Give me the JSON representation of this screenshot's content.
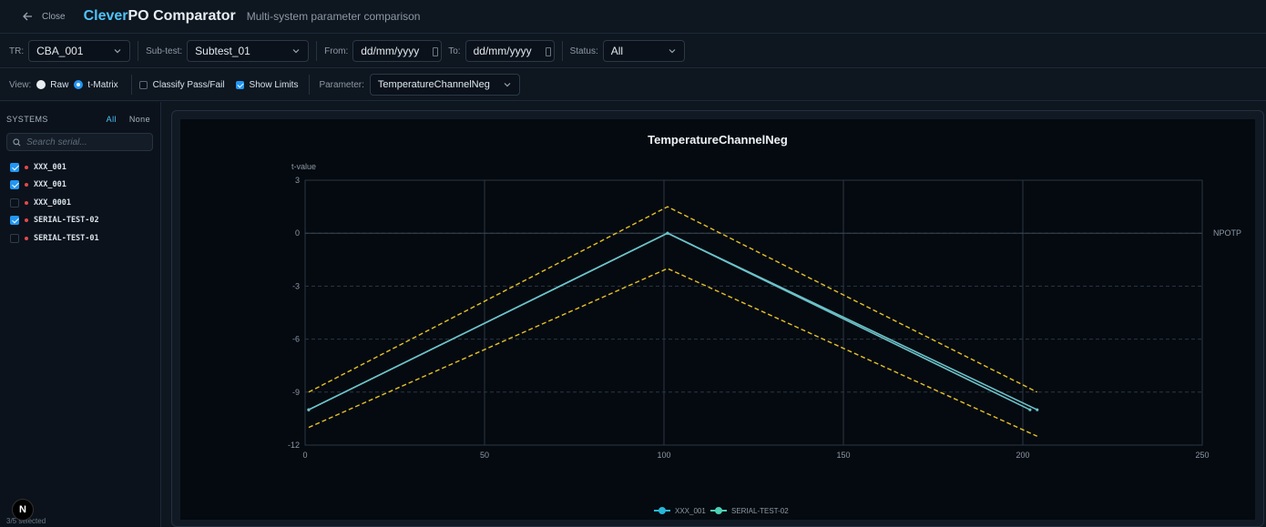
{
  "header": {
    "close_label": "Close",
    "brand_accent": "Clever",
    "brand_rest": "PO Comparator",
    "subtitle": "Multi-system parameter comparison"
  },
  "filters": {
    "tr_label": "TR:",
    "tr_value": "CBA_001",
    "subtest_label": "Sub-test:",
    "subtest_value": "Subtest_01",
    "from_label": "From:",
    "from_placeholder": "dd/mm/yyyy",
    "to_label": "To:",
    "to_placeholder": "dd/mm/yyyy",
    "status_label": "Status:",
    "status_value": "All"
  },
  "view": {
    "view_label": "View:",
    "raw_label": "Raw",
    "tmatrix_label": "t-Matrix",
    "selected": "t-Matrix",
    "classify_label": "Classify Pass/Fail",
    "classify_checked": false,
    "limits_label": "Show Limits",
    "limits_checked": true,
    "parameter_label": "Parameter:",
    "parameter_value": "TemperatureChannelNeg"
  },
  "sidebar": {
    "title": "SYSTEMS",
    "all_label": "All",
    "none_label": "None",
    "search_placeholder": "Search serial...",
    "systems": [
      {
        "label": "XXX_001",
        "checked": true
      },
      {
        "label": "XXX_001",
        "checked": true
      },
      {
        "label": "XXX_0001",
        "checked": false
      },
      {
        "label": "SERIAL-TEST-02",
        "checked": true
      },
      {
        "label": "SERIAL-TEST-01",
        "checked": false
      }
    ],
    "selected_count": "3/5 selected",
    "badge": "N"
  },
  "colors": {
    "accent": "#4fc3f7",
    "series_line": "#6cc3c9",
    "limit_line": "#e6c229",
    "status_dot": "#e5484d"
  },
  "chart_data": {
    "type": "line",
    "title": "TemperatureChannelNeg",
    "ylabel": "t-value",
    "xlabel": "",
    "xlim": [
      0,
      250
    ],
    "ylim": [
      -12,
      3
    ],
    "xticks": [
      0,
      50,
      100,
      150,
      200,
      250
    ],
    "yticks": [
      3,
      0,
      -3,
      -6,
      -9,
      -12
    ],
    "reference_line": {
      "y": 0,
      "label": "NPOTP"
    },
    "series": [
      {
        "name": "XXX_001",
        "x": [
          1,
          101,
          202
        ],
        "y": [
          -10,
          0,
          -10
        ]
      },
      {
        "name": "SERIAL-TEST-02",
        "x": [
          1,
          101,
          204
        ],
        "y": [
          -10,
          0,
          -10
        ]
      }
    ],
    "limits": [
      {
        "x": [
          1,
          101,
          204
        ],
        "y": [
          -9,
          1.5,
          -9
        ]
      },
      {
        "x": [
          1,
          101,
          204
        ],
        "y": [
          -11,
          -2,
          -11.5
        ]
      }
    ],
    "legend": [
      "XXX_001",
      "SERIAL-TEST-02"
    ],
    "legend_position": "bottom",
    "grid": true
  }
}
